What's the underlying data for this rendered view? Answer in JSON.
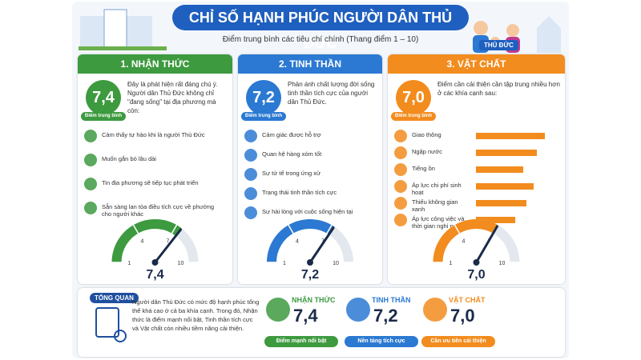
{
  "header": {
    "title": "CHỈ SỐ HẠNH PHÚC NGƯỜI DÂN THỦ ĐỨC",
    "subtitle": "Điểm trung bình các tiêu chí chính (Thang điểm 1 – 10)",
    "badge": "THỦ ĐỨC"
  },
  "panels": [
    {
      "heading": "1. NHẬN THỨC",
      "color": "#3d9a3f",
      "score": {
        "value": 7.4,
        "label": "7,4"
      },
      "score_caption": "Điểm trung bình",
      "description": "Đây là phát hiện rất đáng chú ý. Người dân Thủ Đức không chỉ \"đang sống\" tại địa phương mà còn:",
      "items": [
        "Cảm thấy tự hào khi là người Thủ Đức",
        "Muốn gắn bó lâu dài",
        "Tin địa phương sẽ tiếp tục phát triển",
        "Sẵn sàng lan tỏa điều tích cực về phường cho người khác"
      ],
      "gauge": {
        "lim": [
          1,
          10
        ],
        "ticks": [
          1,
          4,
          7,
          10
        ]
      }
    },
    {
      "heading": "2. TINH THẦN",
      "color": "#2b79d2",
      "score": {
        "value": 7.2,
        "label": "7,2"
      },
      "score_caption": "Điểm trung bình",
      "description": "Phản ánh chất lượng đời sống tinh thần tích cực của người dân Thủ Đức.",
      "items": [
        "Cảm giác được hỗ trợ",
        "Quan hệ hàng xóm tốt",
        "Sự tử tế trong ứng xử",
        "Trạng thái tinh thần tích cực",
        "Sự hài lòng với cuộc sống hiện tại"
      ],
      "gauge": {
        "lim": [
          1,
          10
        ],
        "ticks": [
          1,
          4,
          7,
          10
        ]
      }
    },
    {
      "heading": "3. VẬT CHẤT",
      "color": "#f28c1e",
      "score": {
        "value": 7.0,
        "label": "7,0"
      },
      "score_caption": "Điểm trung bình",
      "description": "Điểm cần cải thiện cần tập trung nhiều hơn ở các khía cạnh sau:",
      "items": [
        "Giao thông",
        "Ngập nước",
        "Tiếng ồn",
        "Áp lực chi phí sinh hoạt",
        "Thiếu không gian xanh",
        "Áp lực công việc và thời gian nghỉ ngơi"
      ],
      "bar_values": [
        88,
        78,
        60,
        74,
        64,
        50
      ],
      "gauge": {
        "lim": [
          1,
          10
        ],
        "ticks": [
          1,
          4,
          7,
          10
        ]
      }
    }
  ],
  "overview": {
    "label": "TỔNG QUAN",
    "text": "Người dân Thủ Đức có mức độ hạnh phúc tổng thể khá cao ở cả ba khía cạnh. Trong đó, Nhận thức là điểm mạnh nổi bật, Tinh thần tích cực và Vật chất còn nhiều tiềm năng cải thiện.",
    "cards": [
      {
        "name": "NHẬN THỨC",
        "color": "#3d9a3f",
        "score": {
          "value": 7.4,
          "label": "7,4"
        },
        "tag": "Điểm mạnh nổi bật"
      },
      {
        "name": "TINH THẦN",
        "color": "#2b79d2",
        "score": {
          "value": 7.2,
          "label": "7,2"
        },
        "tag": "Nền tảng tích cực"
      },
      {
        "name": "VẬT CHẤT",
        "color": "#f28c1e",
        "score": {
          "value": 7.0,
          "label": "7,0"
        },
        "tag": "Cần ưu tiên cải thiện"
      }
    ]
  }
}
